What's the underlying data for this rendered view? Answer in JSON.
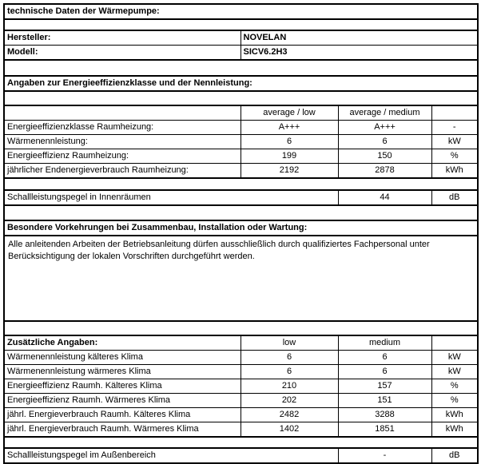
{
  "doc_title": "technische Daten der Wärmepumpe:",
  "colors": {
    "border": "#000000",
    "background": "#ffffff",
    "text": "#000000"
  },
  "identification": {
    "hersteller_label": "Hersteller:",
    "hersteller_value": "NOVELAN",
    "modell_label": "Modell:",
    "modell_value": "SICV6.2H3"
  },
  "energy_section": {
    "title": "Angaben zur Energieeffizienzklasse und der Nennleistung:",
    "col_low": "average / low",
    "col_medium": "average / medium",
    "rows": [
      {
        "label": "Energieeffizienzklasse Raumheizung:",
        "low": "A+++",
        "medium": "A+++",
        "unit": "-"
      },
      {
        "label": "Wärmenennleistung:",
        "low": "6",
        "medium": "6",
        "unit": "kW"
      },
      {
        "label": "Energieeffizienz Raumheizung:",
        "low": "199",
        "medium": "150",
        "unit": "%"
      },
      {
        "label": "jährlicher Endenergieverbrauch Raumheizung:",
        "low": "2192",
        "medium": "2878",
        "unit": "kWh"
      }
    ],
    "sound_row": {
      "label": "Schallleistungspegel in Innenräumen",
      "value": "44",
      "unit": "dB"
    }
  },
  "precautions_section": {
    "title": "Besondere Vorkehrungen bei Zusammenbau, Installation oder Wartung:",
    "text": "Alle anleitenden Arbeiten der Betriebsanleitung dürfen ausschließlich durch qualifiziertes Fachpersonal unter Berücksichtigung der lokalen Vorschriften durchgeführt werden."
  },
  "additional_section": {
    "title": "Zusätzliche Angaben:",
    "col_low": "low",
    "col_medium": "medium",
    "rows": [
      {
        "label": "Wärmenennleistung kälteres Klima",
        "low": "6",
        "medium": "6",
        "unit": "kW"
      },
      {
        "label": "Wärmenennleistung wärmeres Klima",
        "low": "6",
        "medium": "6",
        "unit": "kW"
      },
      {
        "label": "Energieeffizienz Raumh. Kälteres Klima",
        "low": "210",
        "medium": "157",
        "unit": "%"
      },
      {
        "label": "Energieeffizienz Raumh. Wärmeres Klima",
        "low": "202",
        "medium": "151",
        "unit": "%"
      },
      {
        "label": "jährl. Energieverbrauch Raumh. Kälteres Klima",
        "low": "2482",
        "medium": "3288",
        "unit": "kWh"
      },
      {
        "label": "jährl. Energieverbrauch Raumh. Wärmeres Klima",
        "low": "1402",
        "medium": "1851",
        "unit": "kWh"
      }
    ],
    "sound_row": {
      "label": "Schallleistungspegel im Außenbereich",
      "value": "-",
      "unit": "dB"
    }
  }
}
